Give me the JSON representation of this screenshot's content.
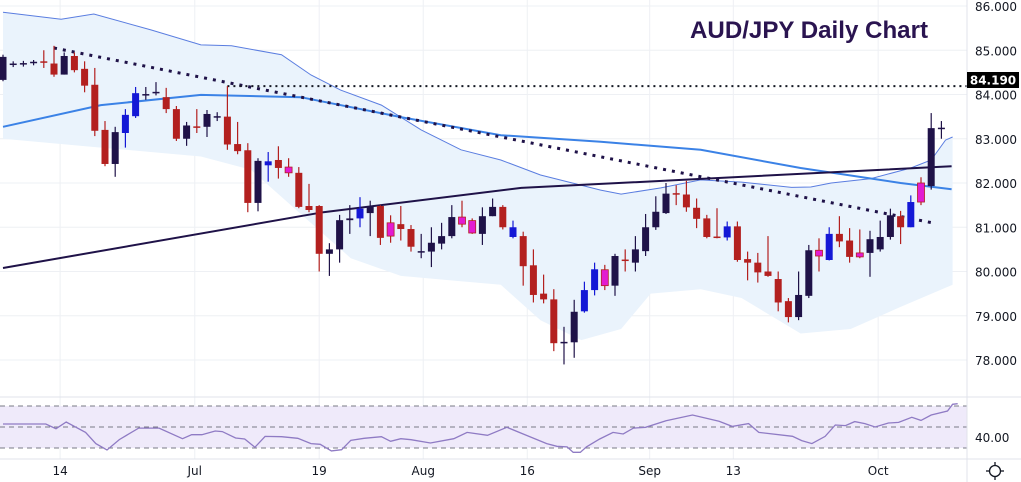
{
  "chart_data": {
    "type": "candlestick",
    "title": "AUD/JPY Daily Chart",
    "price_axis": {
      "ylim": [
        78,
        86
      ],
      "ticks": [
        "86.000",
        "85.000",
        "84.000",
        "83.000",
        "82.000",
        "81.000",
        "80.000",
        "79.000",
        "78.000"
      ]
    },
    "x_ticks": [
      {
        "label": "14",
        "bar": 5.6
      },
      {
        "label": "Jul",
        "bar": 18.8
      },
      {
        "label": "19",
        "bar": 31.0
      },
      {
        "label": "Aug",
        "bar": 41.2
      },
      {
        "label": "16",
        "bar": 51.4
      },
      {
        "label": "Sep",
        "bar": 63.4
      },
      {
        "label": "13",
        "bar": 71.6
      },
      {
        "label": "Oct",
        "bar": 85.8
      }
    ],
    "level_line": {
      "value": 84.19,
      "label": "84.190"
    },
    "colors": {
      "up": "#1f1248",
      "down": "#b3201f",
      "blue": "#1418d6",
      "magenta": "#e21bd2",
      "ma100": "#3b82e6",
      "ma200": "#1f1248",
      "band": "#5a7de0",
      "band_fill": "#eaf3fc",
      "rsi": "#8f7bc4",
      "rsi_fill": "#efeafa"
    },
    "candles": [
      [
        84.33,
        84.9,
        84.3,
        84.85,
        "u"
      ],
      [
        84.68,
        84.75,
        84.62,
        84.7,
        "u"
      ],
      [
        84.69,
        84.76,
        84.63,
        84.71,
        "u"
      ],
      [
        84.72,
        84.78,
        84.66,
        84.74,
        "u"
      ],
      [
        84.75,
        85.0,
        84.6,
        84.72,
        "d"
      ],
      [
        84.7,
        85.1,
        84.4,
        84.45,
        "d"
      ],
      [
        84.45,
        84.95,
        84.45,
        84.87,
        "u"
      ],
      [
        84.87,
        84.95,
        84.5,
        84.55,
        "d"
      ],
      [
        84.58,
        84.75,
        84.05,
        84.2,
        "d"
      ],
      [
        84.22,
        84.6,
        83.06,
        83.18,
        "d"
      ],
      [
        83.2,
        83.4,
        82.38,
        82.43,
        "d"
      ],
      [
        82.43,
        83.27,
        82.14,
        83.15,
        "u"
      ],
      [
        83.13,
        83.67,
        82.8,
        83.54,
        "b"
      ],
      [
        83.51,
        84.17,
        83.47,
        84.03,
        "b"
      ],
      [
        83.99,
        84.17,
        83.88,
        84.01,
        "u"
      ],
      [
        84.04,
        84.28,
        83.98,
        84.06,
        "u"
      ],
      [
        83.94,
        84.15,
        83.58,
        83.67,
        "d"
      ],
      [
        83.67,
        83.74,
        82.95,
        83.0,
        "d"
      ],
      [
        83.0,
        83.38,
        82.84,
        83.3,
        "u"
      ],
      [
        83.28,
        83.67,
        83.13,
        83.26,
        "d"
      ],
      [
        83.27,
        83.65,
        83.04,
        83.56,
        "u"
      ],
      [
        83.49,
        83.6,
        83.4,
        83.51,
        "u"
      ],
      [
        83.5,
        84.19,
        82.75,
        82.87,
        "d"
      ],
      [
        82.88,
        83.38,
        82.65,
        82.72,
        "d"
      ],
      [
        82.74,
        82.9,
        81.34,
        81.55,
        "d"
      ],
      [
        81.55,
        82.56,
        81.36,
        82.5,
        "u"
      ],
      [
        82.4,
        82.7,
        82.03,
        82.49,
        "b"
      ],
      [
        82.52,
        82.83,
        82.1,
        82.34,
        "d"
      ],
      [
        82.36,
        82.56,
        82.14,
        82.23,
        "m"
      ],
      [
        82.23,
        82.36,
        81.43,
        81.46,
        "d"
      ],
      [
        81.48,
        81.98,
        81.34,
        81.39,
        "d"
      ],
      [
        81.48,
        81.5,
        80.0,
        80.4,
        "d"
      ],
      [
        80.4,
        80.64,
        79.9,
        80.5,
        "u"
      ],
      [
        80.5,
        81.28,
        80.2,
        81.16,
        "u"
      ],
      [
        81.16,
        81.5,
        80.85,
        81.2,
        "u"
      ],
      [
        81.2,
        81.68,
        81.0,
        81.42,
        "b"
      ],
      [
        81.32,
        81.6,
        80.8,
        81.48,
        "u"
      ],
      [
        81.48,
        81.5,
        80.6,
        80.76,
        "d"
      ],
      [
        81.1,
        81.27,
        80.65,
        80.8,
        "m"
      ],
      [
        81.07,
        81.48,
        80.7,
        80.96,
        "d"
      ],
      [
        80.96,
        81.05,
        80.45,
        80.56,
        "d"
      ],
      [
        80.44,
        80.85,
        80.3,
        80.46,
        "u"
      ],
      [
        80.45,
        81.0,
        80.1,
        80.65,
        "u"
      ],
      [
        80.63,
        81.1,
        80.5,
        80.8,
        "u"
      ],
      [
        80.8,
        81.5,
        80.75,
        81.23,
        "u"
      ],
      [
        81.23,
        81.6,
        81.0,
        81.07,
        "m"
      ],
      [
        81.15,
        81.2,
        80.85,
        80.87,
        "m"
      ],
      [
        80.85,
        81.45,
        80.6,
        81.25,
        "u"
      ],
      [
        81.25,
        81.65,
        81.25,
        81.46,
        "u"
      ],
      [
        81.46,
        81.5,
        80.95,
        81.0,
        "d"
      ],
      [
        80.78,
        81.15,
        80.75,
        81.0,
        "b"
      ],
      [
        80.8,
        80.9,
        79.68,
        80.12,
        "d"
      ],
      [
        80.14,
        80.5,
        79.3,
        79.47,
        "d"
      ],
      [
        79.5,
        79.93,
        79.28,
        79.37,
        "d"
      ],
      [
        79.37,
        79.6,
        78.2,
        78.38,
        "d"
      ],
      [
        78.39,
        78.75,
        77.9,
        78.41,
        "u"
      ],
      [
        78.4,
        79.36,
        78.05,
        79.09,
        "u"
      ],
      [
        79.1,
        79.77,
        79.07,
        79.58,
        "b"
      ],
      [
        79.58,
        80.2,
        79.46,
        80.05,
        "b"
      ],
      [
        80.04,
        80.15,
        79.58,
        79.68,
        "m"
      ],
      [
        79.68,
        80.4,
        79.45,
        80.35,
        "u"
      ],
      [
        80.27,
        80.5,
        80.0,
        80.25,
        "d"
      ],
      [
        80.2,
        80.8,
        80.0,
        80.5,
        "u"
      ],
      [
        80.46,
        81.3,
        80.35,
        81.0,
        "u"
      ],
      [
        81.0,
        81.7,
        80.94,
        81.35,
        "u"
      ],
      [
        81.32,
        82.0,
        81.3,
        81.76,
        "u"
      ],
      [
        81.77,
        81.95,
        81.5,
        81.75,
        "d"
      ],
      [
        81.74,
        82.05,
        81.35,
        81.45,
        "d"
      ],
      [
        81.44,
        81.65,
        80.98,
        81.19,
        "d"
      ],
      [
        81.2,
        81.28,
        80.75,
        80.78,
        "d"
      ],
      [
        80.79,
        81.43,
        80.75,
        80.77,
        "d"
      ],
      [
        80.77,
        81.13,
        80.7,
        81.02,
        "b"
      ],
      [
        81.02,
        81.13,
        80.22,
        80.26,
        "d"
      ],
      [
        80.28,
        80.45,
        79.8,
        80.2,
        "d"
      ],
      [
        80.2,
        80.42,
        79.75,
        79.98,
        "d"
      ],
      [
        80.0,
        80.8,
        79.88,
        79.9,
        "d"
      ],
      [
        79.83,
        80.0,
        79.1,
        79.3,
        "d"
      ],
      [
        79.33,
        79.4,
        78.85,
        78.97,
        "d"
      ],
      [
        78.97,
        80.0,
        78.9,
        79.47,
        "u"
      ],
      [
        79.45,
        80.6,
        79.4,
        80.48,
        "u"
      ],
      [
        80.48,
        80.75,
        80.0,
        80.35,
        "m"
      ],
      [
        80.26,
        81.0,
        80.25,
        80.85,
        "b"
      ],
      [
        80.85,
        81.25,
        80.55,
        80.68,
        "d"
      ],
      [
        80.7,
        80.98,
        80.2,
        80.33,
        "d"
      ],
      [
        80.42,
        80.95,
        80.3,
        80.33,
        "m"
      ],
      [
        80.42,
        80.92,
        79.88,
        80.73,
        "u"
      ],
      [
        80.5,
        81.15,
        80.45,
        80.78,
        "u"
      ],
      [
        80.78,
        81.42,
        80.72,
        81.27,
        "u"
      ],
      [
        81.25,
        81.37,
        80.62,
        81.0,
        "d"
      ],
      [
        81.0,
        81.72,
        81.0,
        81.57,
        "b"
      ],
      [
        82.0,
        82.13,
        81.5,
        81.57,
        "m"
      ],
      [
        81.93,
        83.58,
        81.85,
        83.24,
        "u"
      ],
      [
        83.22,
        83.4,
        83.0,
        83.25,
        "u"
      ]
    ],
    "ma200": [
      [
        0,
        80.08
      ],
      [
        31.4,
        81.34
      ],
      [
        50.8,
        81.89
      ],
      [
        66.5,
        82.07
      ],
      [
        93,
        82.38
      ]
    ],
    "ma100": [
      [
        0,
        83.27
      ],
      [
        9.6,
        83.76
      ],
      [
        19.4,
        83.99
      ],
      [
        29.2,
        83.94
      ],
      [
        39,
        83.49
      ],
      [
        48.8,
        83.08
      ],
      [
        58.6,
        82.93
      ],
      [
        68.4,
        82.75
      ],
      [
        78.2,
        82.34
      ],
      [
        88,
        82.0
      ],
      [
        93,
        81.86
      ]
    ],
    "upper_band": [
      [
        0,
        85.86
      ],
      [
        5.7,
        85.7
      ],
      [
        8.9,
        85.82
      ],
      [
        14.5,
        85.46
      ],
      [
        19.4,
        85.12
      ],
      [
        22.4,
        85.1
      ],
      [
        27.3,
        84.9
      ],
      [
        30.2,
        84.44
      ],
      [
        33.1,
        84.1
      ],
      [
        37.1,
        83.76
      ],
      [
        41,
        83.2
      ],
      [
        44.9,
        82.75
      ],
      [
        48.8,
        82.52
      ],
      [
        52.7,
        82.18
      ],
      [
        58.6,
        81.84
      ],
      [
        60.6,
        81.75
      ],
      [
        64.5,
        81.89
      ],
      [
        68.4,
        82.07
      ],
      [
        72.4,
        82.02
      ],
      [
        77.3,
        81.9
      ],
      [
        79.2,
        81.91
      ],
      [
        81.2,
        82.0
      ],
      [
        85.1,
        82.1
      ],
      [
        89,
        82.34
      ],
      [
        91,
        82.52
      ],
      [
        92.4,
        82.97
      ],
      [
        93.1,
        83.04
      ]
    ],
    "lower_band": [
      [
        0,
        83.0
      ],
      [
        9.6,
        82.8
      ],
      [
        19.4,
        82.6
      ],
      [
        24.3,
        82.3
      ],
      [
        29.2,
        81.3
      ],
      [
        34.1,
        80.3
      ],
      [
        39,
        79.9
      ],
      [
        43.9,
        79.8
      ],
      [
        48.8,
        79.7
      ],
      [
        52.7,
        78.9
      ],
      [
        56.7,
        78.45
      ],
      [
        60.6,
        78.7
      ],
      [
        63.5,
        79.5
      ],
      [
        68.4,
        79.6
      ],
      [
        72.4,
        79.4
      ],
      [
        78.2,
        78.6
      ],
      [
        83.1,
        78.7
      ],
      [
        88,
        79.2
      ],
      [
        93.1,
        79.7
      ]
    ],
    "trendline": [
      [
        5,
        85.05
      ],
      [
        91.1,
        81.1
      ]
    ],
    "rsi": {
      "label": "40.00",
      "levels": [
        70,
        50,
        30
      ],
      "points": [
        [
          0,
          52.9
        ],
        [
          4.2,
          52.9
        ],
        [
          5.2,
          48.4
        ],
        [
          6.2,
          54.8
        ],
        [
          8.1,
          44.9
        ],
        [
          9.1,
          34.2
        ],
        [
          10.2,
          28.1
        ],
        [
          11.4,
          38
        ],
        [
          13.3,
          49
        ],
        [
          15.3,
          49
        ],
        [
          17.6,
          38.9
        ],
        [
          18.5,
          42.7
        ],
        [
          19.5,
          42.7
        ],
        [
          20.8,
          46.2
        ],
        [
          21.5,
          45.6
        ],
        [
          22.8,
          39.5
        ],
        [
          23.7,
          38.6
        ],
        [
          24.7,
          30.7
        ],
        [
          25.7,
          41
        ],
        [
          27.3,
          40.8
        ],
        [
          28.9,
          39.2
        ],
        [
          30.2,
          34.2
        ],
        [
          31.1,
          33.5
        ],
        [
          32.2,
          27.2
        ],
        [
          33.2,
          28.4
        ],
        [
          34.1,
          37.3
        ],
        [
          35.4,
          39.2
        ],
        [
          37.1,
          40.8
        ],
        [
          38,
          36.4
        ],
        [
          39,
          38.9
        ],
        [
          40,
          37.9
        ],
        [
          41.9,
          34.8
        ],
        [
          44.2,
          38.9
        ],
        [
          45.5,
          44.9
        ],
        [
          47.5,
          42.1
        ],
        [
          49.4,
          49.7
        ],
        [
          51,
          43.3
        ],
        [
          53.3,
          34.2
        ],
        [
          54.3,
          31.6
        ],
        [
          55.3,
          31
        ],
        [
          55.9,
          25.9
        ],
        [
          56.6,
          25.9
        ],
        [
          57.2,
          31
        ],
        [
          58.5,
          38.6
        ],
        [
          59.8,
          44.9
        ],
        [
          60.8,
          43.3
        ],
        [
          61.8,
          49
        ],
        [
          63,
          49.7
        ],
        [
          65,
          56
        ],
        [
          67.6,
          61.4
        ],
        [
          70.2,
          55.4
        ],
        [
          71.5,
          50.6
        ],
        [
          73.1,
          53.2
        ],
        [
          74.1,
          44.9
        ],
        [
          77.4,
          41.1
        ],
        [
          78.3,
          37
        ],
        [
          79.3,
          34.2
        ],
        [
          80.6,
          41
        ],
        [
          81.6,
          51.9
        ],
        [
          82.6,
          51.3
        ],
        [
          83.5,
          55.1
        ],
        [
          84.5,
          53.2
        ],
        [
          85.5,
          50
        ],
        [
          86.8,
          53.8
        ],
        [
          87.8,
          54.4
        ],
        [
          89.1,
          59.2
        ],
        [
          90,
          56.3
        ],
        [
          91,
          61.4
        ],
        [
          92.6,
          65.2
        ],
        [
          93.1,
          71.6
        ],
        [
          93.6,
          72.2
        ]
      ]
    }
  },
  "settings_icon": "gear-icon"
}
